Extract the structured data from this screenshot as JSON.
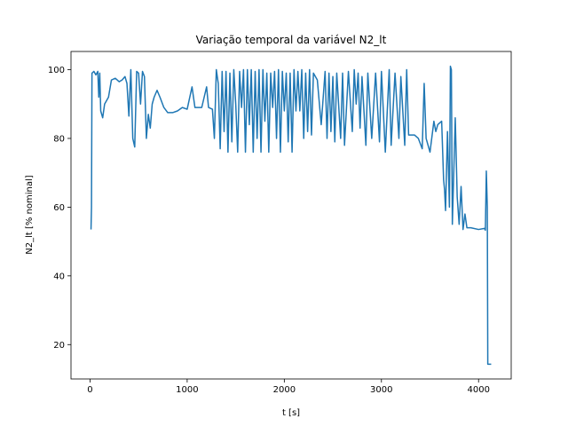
{
  "chart_data": {
    "type": "line",
    "title": "Variação temporal da variável N2_lt",
    "xlabel": "t [s]",
    "ylabel": "N2_lt [% nominal]",
    "xlim": [
      -196,
      4336
    ],
    "ylim": [
      10.0,
      105.3
    ],
    "xticks": [
      0,
      1000,
      2000,
      3000,
      4000
    ],
    "yticks": [
      20,
      40,
      60,
      80,
      100
    ],
    "series": [
      {
        "name": "N2_lt",
        "color": "#1f77b4",
        "x": [
          10,
          15,
          20,
          40,
          60,
          80,
          90,
          100,
          110,
          130,
          150,
          170,
          190,
          220,
          260,
          300,
          330,
          360,
          380,
          400,
          420,
          440,
          460,
          480,
          500,
          520,
          540,
          560,
          580,
          600,
          620,
          640,
          660,
          690,
          720,
          760,
          800,
          850,
          900,
          950,
          1000,
          1050,
          1080,
          1100,
          1150,
          1200,
          1220,
          1260,
          1280,
          1300,
          1320,
          1340,
          1360,
          1380,
          1400,
          1420,
          1440,
          1460,
          1480,
          1500,
          1520,
          1540,
          1560,
          1580,
          1600,
          1620,
          1640,
          1660,
          1680,
          1700,
          1720,
          1740,
          1760,
          1780,
          1800,
          1820,
          1840,
          1860,
          1880,
          1900,
          1920,
          1940,
          1960,
          1980,
          2000,
          2020,
          2040,
          2060,
          2080,
          2100,
          2120,
          2140,
          2160,
          2180,
          2200,
          2220,
          2240,
          2260,
          2280,
          2300,
          2340,
          2380,
          2420,
          2440,
          2460,
          2480,
          2500,
          2520,
          2540,
          2580,
          2600,
          2620,
          2660,
          2700,
          2720,
          2740,
          2760,
          2780,
          2800,
          2840,
          2860,
          2900,
          2940,
          2980,
          3000,
          3040,
          3080,
          3100,
          3140,
          3180,
          3200,
          3240,
          3260,
          3280,
          3300,
          3340,
          3380,
          3420,
          3440,
          3460,
          3500,
          3540,
          3560,
          3580,
          3620,
          3640,
          3650,
          3660,
          3680,
          3700,
          3710,
          3720,
          3730,
          3760,
          3780,
          3800,
          3820,
          3840,
          3860,
          3880,
          3920,
          4000,
          4060,
          4070,
          4080,
          4090,
          4095,
          4130
        ],
        "values": [
          53.5,
          60,
          99,
          99.5,
          98.5,
          99.5,
          92,
          99,
          88,
          86,
          90,
          91,
          92,
          97,
          97.5,
          96.5,
          97,
          98,
          96,
          86.5,
          100,
          80,
          77.5,
          99.5,
          99,
          90,
          99.5,
          98,
          80,
          87,
          83,
          90,
          92,
          94,
          92,
          89,
          87.5,
          87.5,
          88,
          89,
          88.5,
          95,
          89,
          89,
          89,
          95,
          89,
          88.5,
          80,
          100,
          96,
          77,
          99.5,
          82,
          99.5,
          76,
          99,
          79,
          100,
          90,
          76,
          99.5,
          89,
          100,
          76,
          100,
          84,
          100,
          76,
          99.5,
          80,
          100,
          76,
          100,
          85,
          99,
          76,
          99,
          89,
          99.5,
          80,
          100,
          76,
          99.5,
          88,
          99,
          79,
          99,
          76,
          100,
          88,
          99.5,
          88,
          100,
          80,
          99,
          82,
          100,
          81,
          99,
          97,
          84,
          99.5,
          80,
          99,
          82,
          98,
          79,
          99,
          80,
          99,
          78,
          99.5,
          82,
          100,
          90,
          99,
          83,
          98,
          78,
          99,
          80,
          99,
          79,
          99.5,
          76,
          100,
          78,
          99,
          80,
          98,
          78,
          100,
          81,
          81,
          81,
          80,
          77,
          96,
          80,
          76,
          85,
          82,
          84,
          85,
          68,
          65,
          59,
          82,
          60,
          101,
          100,
          55,
          86,
          63,
          55,
          66,
          53.5,
          58,
          54,
          54,
          53.5,
          53.8,
          53.3,
          70.5,
          60,
          14.3,
          14.3
        ]
      }
    ]
  }
}
